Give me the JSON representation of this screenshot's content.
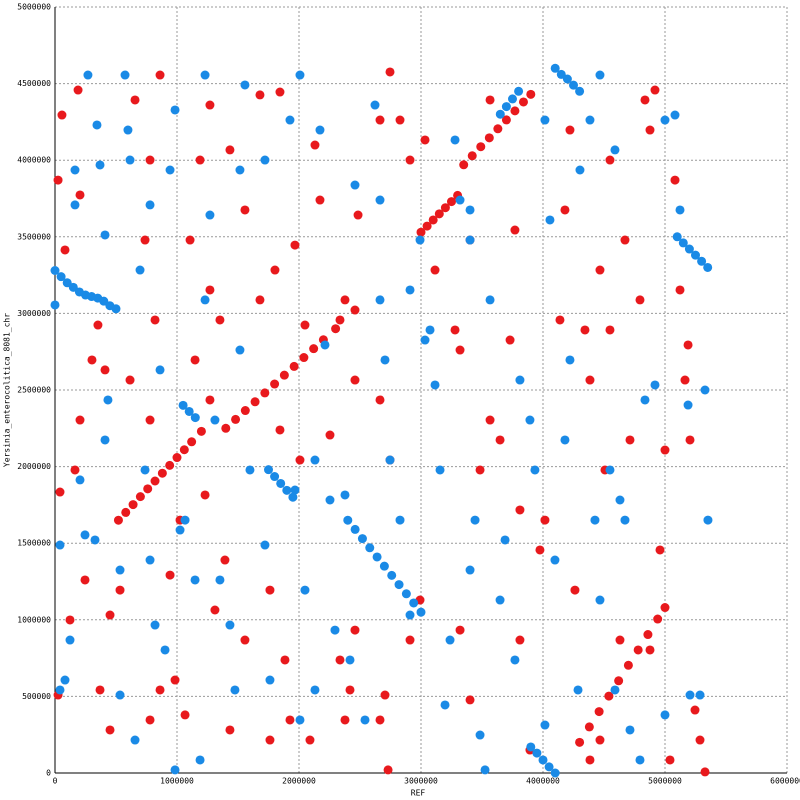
{
  "chart_data": {
    "type": "scatter",
    "x_label": "REF",
    "y_label": "Yersinia_enterocolitica_8081_chr",
    "xlim": [
      0,
      6000000
    ],
    "ylim": [
      0,
      5000000
    ],
    "xticks": [
      0,
      1000000,
      2000000,
      3000000,
      4000000,
      5000000,
      6000000
    ],
    "yticks": [
      0,
      500000,
      1000000,
      1500000,
      2000000,
      2500000,
      3000000,
      3500000,
      4000000,
      4500000,
      5000000
    ],
    "grid": true,
    "series": [
      {
        "color": "#e8191d",
        "x": [
          25000,
          57000,
          82000,
          189000,
          205000,
          205000,
          164000,
          41000,
          246000,
          123000,
          25000,
          369000,
          451000,
          303000,
          410000,
          352000,
          656000,
          779000,
          861000,
          738000,
          615000,
          820000,
          779000,
          1025000,
          943000,
          984000,
          861000,
          779000,
          533000,
          451000,
          1066000,
          1107000,
          1189000,
          1270000,
          1434000,
          1557000,
          1270000,
          1352000,
          1148000,
          1270000,
          1230000,
          1393000,
          1311000,
          1434000,
          1557000,
          1680000,
          1844000,
          1803000,
          1967000,
          2049000,
          1680000,
          1844000,
          2008000,
          1762000,
          1885000,
          1762000,
          2090000,
          1926000,
          2172000,
          2131000,
          2254000,
          2336000,
          2377000,
          2459000,
          2459000,
          2484000,
          2418000,
          2377000,
          2459000,
          2336000,
          2664000,
          2746000,
          2828000,
          2910000,
          3033000,
          2664000,
          2746000,
          2705000,
          2664000,
          2730000,
          2910000,
          2992000,
          3115000,
          3279000,
          3320000,
          3402000,
          3484000,
          3566000,
          3648000,
          3320000,
          3402000,
          3566000,
          3770000,
          3730000,
          3811000,
          3811000,
          3975000,
          4016000,
          3893000,
          4139000,
          4221000,
          4180000,
          4262000,
          4344000,
          4385000,
          4508000,
          4467000,
          4549000,
          4549000,
          4631000,
          4672000,
          4713000,
          4836000,
          4877000,
          4795000,
          4918000,
          4959000,
          5000000,
          5041000,
          5082000,
          5123000,
          5164000,
          5189000,
          5205000,
          5246000,
          5287000,
          5328000,
          4877000,
          4467000,
          4385000,
          520000,
          580000,
          640000,
          700000,
          760000,
          820000,
          880000,
          940000,
          1000000,
          1060000,
          1120000,
          1200000,
          1400000,
          1480000,
          1560000,
          1640000,
          1720000,
          1800000,
          1880000,
          1960000,
          2040000,
          2120000,
          2200000,
          2300000,
          3000000,
          3050000,
          3100000,
          3150000,
          3200000,
          3250000,
          3300000,
          3350000,
          3420000,
          3490000,
          3560000,
          3630000,
          3700000,
          3770000,
          3840000,
          3900000,
          4300000,
          4380000,
          4460000,
          4540000,
          4620000,
          4700000,
          4780000,
          4860000,
          4940000,
          5000000
        ],
        "values": [
          3870000,
          4295000,
          3414000,
          4458000,
          3773000,
          2304000,
          1978000,
          1834000,
          1260000,
          999000,
          509000,
          542000,
          281000,
          2696000,
          2631000,
          2924000,
          4393000,
          4001000,
          4556000,
          3479000,
          2565000,
          2957000,
          2304000,
          1651000,
          1292000,
          607000,
          542000,
          346000,
          1194000,
          1031000,
          379000,
          3479000,
          4001000,
          4360000,
          4067000,
          3675000,
          3153000,
          2957000,
          2696000,
          2435000,
          1815000,
          1390000,
          1064000,
          281000,
          868000,
          4426000,
          4445000,
          3283000,
          3446000,
          2924000,
          3088000,
          2239000,
          2043000,
          1194000,
          738000,
          215000,
          215000,
          346000,
          3740000,
          4099000,
          2206000,
          2957000,
          3088000,
          2565000,
          3022000,
          3642000,
          542000,
          346000,
          933000,
          738000,
          4262000,
          4576000,
          4262000,
          4001000,
          4132000,
          2435000,
          2043000,
          509000,
          346000,
          20000,
          868000,
          1129000,
          3283000,
          2892000,
          2761000,
          3479000,
          1978000,
          2304000,
          2174000,
          933000,
          477000,
          4393000,
          3544000,
          2826000,
          1717000,
          868000,
          1456000,
          1651000,
          150000,
          2957000,
          4197000,
          3675000,
          1194000,
          2892000,
          2565000,
          1978000,
          3283000,
          4001000,
          2892000,
          868000,
          3479000,
          2174000,
          4393000,
          4197000,
          3088000,
          4458000,
          1456000,
          2108000,
          85000,
          3870000,
          3153000,
          2565000,
          2794000,
          2174000,
          411000,
          215000,
          7000,
          803000,
          215000,
          85000,
          1650000,
          1701000,
          1752000,
          1804000,
          1855000,
          1906000,
          1957000,
          2008000,
          2059000,
          2110000,
          2162000,
          2230000,
          2250000,
          2308000,
          2366000,
          2423000,
          2481000,
          2539000,
          2597000,
          2654000,
          2712000,
          2770000,
          2828000,
          2900000,
          3530000,
          3570000,
          3610000,
          3650000,
          3690000,
          3730000,
          3770000,
          3970000,
          4029000,
          4088000,
          4146000,
          4205000,
          4263000,
          4322000,
          4380000,
          4430000,
          200000,
          301000,
          401000,
          502000,
          602000,
          703000,
          803000,
          904000,
          1005000,
          1080000
        ]
      },
      {
        "color": "#1a8ae6",
        "x": [
          0,
          41000,
          82000,
          41000,
          123000,
          164000,
          164000,
          205000,
          246000,
          270000,
          328000,
          344000,
          369000,
          410000,
          410000,
          434000,
          533000,
          533000,
          574000,
          598000,
          615000,
          656000,
          697000,
          779000,
          779000,
          738000,
          820000,
          861000,
          902000,
          943000,
          984000,
          984000,
          1025000,
          1066000,
          1148000,
          1189000,
          1230000,
          1270000,
          1230000,
          1311000,
          1352000,
          1434000,
          1475000,
          1516000,
          1557000,
          1516000,
          1598000,
          1721000,
          1721000,
          1762000,
          1926000,
          1967000,
          2008000,
          2049000,
          2008000,
          2172000,
          2131000,
          2131000,
          2213000,
          2254000,
          2295000,
          2377000,
          2418000,
          2459000,
          2541000,
          2623000,
          2664000,
          2664000,
          2705000,
          2746000,
          2828000,
          2910000,
          2910000,
          2992000,
          3033000,
          3074000,
          3115000,
          3156000,
          3197000,
          3238000,
          3279000,
          3320000,
          3402000,
          3402000,
          3402000,
          3443000,
          3484000,
          3525000,
          3566000,
          3648000,
          3689000,
          3770000,
          3811000,
          3893000,
          3934000,
          4016000,
          4057000,
          4016000,
          4098000,
          4180000,
          4221000,
          4287000,
          4303000,
          4385000,
          4426000,
          4467000,
          4467000,
          4549000,
          4590000,
          4590000,
          4631000,
          4672000,
          4713000,
          4795000,
          4836000,
          4918000,
          5000000,
          5000000,
          5082000,
          5123000,
          5189000,
          5205000,
          5287000,
          5328000,
          5352000,
          0,
          50000,
          100000,
          150000,
          200000,
          250000,
          300000,
          350000,
          400000,
          450000,
          500000,
          2400000,
          2460000,
          2520000,
          2580000,
          2640000,
          2700000,
          2760000,
          2820000,
          2880000,
          2940000,
          3000000,
          4100000,
          4150000,
          4200000,
          4250000,
          4300000,
          5100000,
          5150000,
          5200000,
          5250000,
          5300000,
          5350000,
          3900000,
          3950000,
          4000000,
          4050000,
          4100000,
          1050000,
          1100000,
          1150000,
          3650000,
          3700000,
          3750000,
          3800000,
          1750000,
          1800000,
          1850000,
          1900000,
          1950000
        ],
        "values": [
          3055000,
          1488000,
          607000,
          542000,
          868000,
          3936000,
          3708000,
          1913000,
          1554000,
          4556000,
          1521000,
          4230000,
          3969000,
          3512000,
          2174000,
          2435000,
          509000,
          1325000,
          4556000,
          4197000,
          4001000,
          215000,
          3283000,
          3708000,
          1390000,
          1978000,
          966000,
          2631000,
          803000,
          3936000,
          4328000,
          20000,
          1586000,
          1651000,
          1260000,
          85000,
          4556000,
          3642000,
          3088000,
          2304000,
          1260000,
          966000,
          542000,
          3936000,
          4491000,
          2761000,
          1978000,
          4001000,
          1488000,
          607000,
          4262000,
          1847000,
          4556000,
          1194000,
          346000,
          4197000,
          2043000,
          542000,
          2794000,
          1782000,
          933000,
          1815000,
          738000,
          3838000,
          346000,
          4360000,
          3740000,
          3088000,
          2696000,
          2043000,
          1651000,
          3153000,
          1031000,
          3479000,
          2826000,
          2892000,
          2533000,
          1978000,
          444000,
          868000,
          4132000,
          3740000,
          3675000,
          3479000,
          1325000,
          1651000,
          248000,
          20000,
          3088000,
          1129000,
          1521000,
          738000,
          2565000,
          2304000,
          1978000,
          4262000,
          3610000,
          313000,
          1390000,
          2174000,
          2696000,
          542000,
          3936000,
          4262000,
          1651000,
          4556000,
          1129000,
          1978000,
          542000,
          4067000,
          1782000,
          1651000,
          281000,
          85000,
          2435000,
          2533000,
          4262000,
          379000,
          4295000,
          3675000,
          2402000,
          509000,
          509000,
          2500000,
          1651000,
          3280000,
          3240000,
          3200000,
          3170000,
          3140000,
          3120000,
          3110000,
          3100000,
          3080000,
          3050000,
          3030000,
          1650000,
          1590000,
          1530000,
          1470000,
          1410000,
          1350000,
          1290000,
          1230000,
          1170000,
          1110000,
          1050000,
          4600000,
          4560000,
          4530000,
          4490000,
          4450000,
          3500000,
          3460000,
          3420000,
          3380000,
          3340000,
          3300000,
          170000,
          130000,
          85000,
          40000,
          0,
          2400000,
          2360000,
          2320000,
          4300000,
          4350000,
          4400000,
          4450000,
          1980000,
          1935000,
          1890000,
          1845000,
          1800000
        ]
      }
    ]
  }
}
